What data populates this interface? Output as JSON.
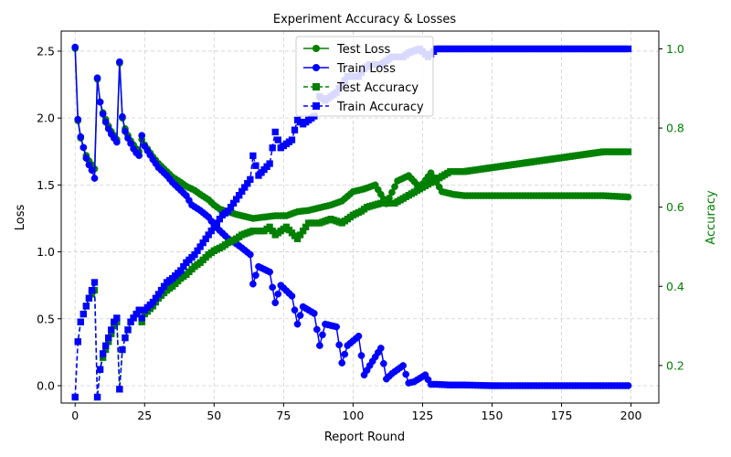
{
  "chart_data": {
    "type": "line",
    "title": "Experiment Accuracy & Losses",
    "xlabel": "Report Round",
    "ylabel": "Loss",
    "y2label": "Accuracy",
    "xlim": [
      -5,
      210
    ],
    "ylim": [
      -0.13,
      2.65
    ],
    "y2lim": [
      0.105,
      1.045
    ],
    "xticks": [
      0,
      25,
      50,
      75,
      100,
      125,
      150,
      175,
      200
    ],
    "yticks": [
      0.0,
      0.5,
      1.0,
      1.5,
      2.0,
      2.5
    ],
    "y2ticks": [
      0.2,
      0.4,
      0.6,
      0.8,
      1.0
    ],
    "grid": true,
    "legend_position": "top-center",
    "colors": {
      "test": "#008000",
      "train": "#0000ff",
      "y2_axis": "#008000"
    },
    "series": [
      {
        "name": "Test Loss",
        "axis": "left",
        "style": "solid",
        "marker": "circle",
        "color": "#008000",
        "keyframes": [
          [
            0,
            2.52
          ],
          [
            1,
            1.98
          ],
          [
            2,
            1.85
          ],
          [
            3,
            1.78
          ],
          [
            4,
            1.72
          ],
          [
            5,
            1.68
          ],
          [
            6,
            1.65
          ],
          [
            7,
            1.62
          ],
          [
            8,
            2.29
          ],
          [
            9,
            2.12
          ],
          [
            10,
            2.04
          ],
          [
            11,
            1.99
          ],
          [
            12,
            1.94
          ],
          [
            13,
            1.9
          ],
          [
            14,
            1.87
          ],
          [
            15,
            1.84
          ],
          [
            16,
            2.41
          ],
          [
            17,
            2.0
          ],
          [
            18,
            1.92
          ],
          [
            19,
            1.87
          ],
          [
            20,
            1.83
          ],
          [
            21,
            1.8
          ],
          [
            22,
            1.77
          ],
          [
            23,
            1.75
          ],
          [
            24,
            1.84
          ],
          [
            25,
            1.8
          ],
          [
            28,
            1.71
          ],
          [
            30,
            1.66
          ],
          [
            33,
            1.6
          ],
          [
            35,
            1.56
          ],
          [
            38,
            1.52
          ],
          [
            40,
            1.49
          ],
          [
            43,
            1.46
          ],
          [
            45,
            1.43
          ],
          [
            48,
            1.39
          ],
          [
            50,
            1.35
          ],
          [
            52,
            1.32
          ],
          [
            55,
            1.3
          ],
          [
            58,
            1.28
          ],
          [
            60,
            1.27
          ],
          [
            64,
            1.25
          ],
          [
            68,
            1.26
          ],
          [
            72,
            1.27
          ],
          [
            76,
            1.27
          ],
          [
            80,
            1.3
          ],
          [
            84,
            1.31
          ],
          [
            88,
            1.33
          ],
          [
            92,
            1.35
          ],
          [
            96,
            1.38
          ],
          [
            100,
            1.45
          ],
          [
            104,
            1.47
          ],
          [
            108,
            1.5
          ],
          [
            112,
            1.36
          ],
          [
            116,
            1.53
          ],
          [
            120,
            1.57
          ],
          [
            124,
            1.48
          ],
          [
            128,
            1.59
          ],
          [
            132,
            1.45
          ],
          [
            136,
            1.43
          ],
          [
            140,
            1.42
          ],
          [
            145,
            1.42
          ],
          [
            150,
            1.42
          ],
          [
            160,
            1.42
          ],
          [
            175,
            1.42
          ],
          [
            190,
            1.42
          ],
          [
            199,
            1.41
          ]
        ]
      },
      {
        "name": "Train Loss",
        "axis": "left",
        "style": "solid",
        "marker": "circle",
        "color": "#0000ff",
        "keyframes": [
          [
            0,
            2.53
          ],
          [
            1,
            1.99
          ],
          [
            2,
            1.86
          ],
          [
            3,
            1.78
          ],
          [
            4,
            1.7
          ],
          [
            5,
            1.65
          ],
          [
            6,
            1.61
          ],
          [
            7,
            1.55
          ],
          [
            8,
            2.3
          ],
          [
            9,
            2.12
          ],
          [
            10,
            2.03
          ],
          [
            11,
            1.97
          ],
          [
            12,
            1.92
          ],
          [
            13,
            1.88
          ],
          [
            14,
            1.85
          ],
          [
            15,
            1.82
          ],
          [
            16,
            2.42
          ],
          [
            17,
            2.01
          ],
          [
            18,
            1.9
          ],
          [
            19,
            1.85
          ],
          [
            20,
            1.81
          ],
          [
            21,
            1.77
          ],
          [
            22,
            1.74
          ],
          [
            23,
            1.72
          ],
          [
            24,
            1.87
          ],
          [
            25,
            1.79
          ],
          [
            28,
            1.69
          ],
          [
            30,
            1.63
          ],
          [
            33,
            1.57
          ],
          [
            35,
            1.52
          ],
          [
            38,
            1.46
          ],
          [
            40,
            1.42
          ],
          [
            42,
            1.35
          ],
          [
            45,
            1.31
          ],
          [
            48,
            1.26
          ],
          [
            50,
            1.2
          ],
          [
            52,
            1.16
          ],
          [
            55,
            1.1
          ],
          [
            58,
            1.06
          ],
          [
            60,
            1.03
          ],
          [
            63,
            0.98
          ],
          [
            64,
            0.76
          ],
          [
            66,
            0.89
          ],
          [
            70,
            0.85
          ],
          [
            72,
            0.62
          ],
          [
            74,
            0.75
          ],
          [
            78,
            0.67
          ],
          [
            80,
            0.46
          ],
          [
            82,
            0.59
          ],
          [
            86,
            0.54
          ],
          [
            88,
            0.3
          ],
          [
            90,
            0.46
          ],
          [
            94,
            0.44
          ],
          [
            96,
            0.17
          ],
          [
            98,
            0.3
          ],
          [
            102,
            0.37
          ],
          [
            104,
            0.08
          ],
          [
            106,
            0.15
          ],
          [
            110,
            0.28
          ],
          [
            112,
            0.05
          ],
          [
            114,
            0.09
          ],
          [
            118,
            0.15
          ],
          [
            120,
            0.02
          ],
          [
            122,
            0.03
          ],
          [
            126,
            0.08
          ],
          [
            128,
            0.01
          ],
          [
            130,
            0.01
          ],
          [
            135,
            0.005
          ],
          [
            140,
            0.005
          ],
          [
            150,
            0.0
          ],
          [
            175,
            0.0
          ],
          [
            199,
            0.0
          ]
        ]
      },
      {
        "name": "Test Accuracy",
        "axis": "right",
        "style": "dashed",
        "marker": "square",
        "color": "#008000",
        "keyframes": [
          [
            0,
            0.12
          ],
          [
            1,
            0.26
          ],
          [
            2,
            0.31
          ],
          [
            3,
            0.33
          ],
          [
            4,
            0.35
          ],
          [
            5,
            0.37
          ],
          [
            6,
            0.38
          ],
          [
            7,
            0.39
          ],
          [
            8,
            0.12
          ],
          [
            9,
            0.19
          ],
          [
            10,
            0.22
          ],
          [
            11,
            0.24
          ],
          [
            12,
            0.26
          ],
          [
            13,
            0.28
          ],
          [
            14,
            0.3
          ],
          [
            15,
            0.31
          ],
          [
            16,
            0.14
          ],
          [
            17,
            0.24
          ],
          [
            18,
            0.27
          ],
          [
            19,
            0.29
          ],
          [
            20,
            0.31
          ],
          [
            21,
            0.32
          ],
          [
            22,
            0.33
          ],
          [
            23,
            0.34
          ],
          [
            24,
            0.31
          ],
          [
            25,
            0.33
          ],
          [
            28,
            0.35
          ],
          [
            30,
            0.37
          ],
          [
            33,
            0.39
          ],
          [
            35,
            0.4
          ],
          [
            38,
            0.42
          ],
          [
            40,
            0.43
          ],
          [
            43,
            0.45
          ],
          [
            45,
            0.46
          ],
          [
            48,
            0.48
          ],
          [
            50,
            0.49
          ],
          [
            53,
            0.5
          ],
          [
            55,
            0.51
          ],
          [
            58,
            0.52
          ],
          [
            60,
            0.53
          ],
          [
            64,
            0.54
          ],
          [
            68,
            0.54
          ],
          [
            70,
            0.55
          ],
          [
            72,
            0.53
          ],
          [
            76,
            0.55
          ],
          [
            80,
            0.52
          ],
          [
            84,
            0.56
          ],
          [
            88,
            0.56
          ],
          [
            92,
            0.57
          ],
          [
            96,
            0.56
          ],
          [
            98,
            0.57
          ],
          [
            100,
            0.58
          ],
          [
            103,
            0.59
          ],
          [
            105,
            0.6
          ],
          [
            110,
            0.61
          ],
          [
            115,
            0.61
          ],
          [
            120,
            0.63
          ],
          [
            125,
            0.65
          ],
          [
            130,
            0.67
          ],
          [
            135,
            0.69
          ],
          [
            140,
            0.69
          ],
          [
            150,
            0.7
          ],
          [
            160,
            0.71
          ],
          [
            170,
            0.72
          ],
          [
            180,
            0.73
          ],
          [
            190,
            0.74
          ],
          [
            199,
            0.74
          ]
        ]
      },
      {
        "name": "Train Accuracy",
        "axis": "right",
        "style": "dashed",
        "marker": "square",
        "color": "#0000ff",
        "keyframes": [
          [
            0,
            0.12
          ],
          [
            1,
            0.26
          ],
          [
            2,
            0.31
          ],
          [
            3,
            0.33
          ],
          [
            4,
            0.35
          ],
          [
            5,
            0.37
          ],
          [
            6,
            0.39
          ],
          [
            7,
            0.41
          ],
          [
            8,
            0.12
          ],
          [
            9,
            0.19
          ],
          [
            10,
            0.23
          ],
          [
            11,
            0.25
          ],
          [
            12,
            0.27
          ],
          [
            13,
            0.29
          ],
          [
            14,
            0.31
          ],
          [
            15,
            0.32
          ],
          [
            16,
            0.14
          ],
          [
            17,
            0.24
          ],
          [
            18,
            0.27
          ],
          [
            19,
            0.29
          ],
          [
            20,
            0.31
          ],
          [
            21,
            0.32
          ],
          [
            22,
            0.33
          ],
          [
            23,
            0.34
          ],
          [
            24,
            0.32
          ],
          [
            25,
            0.34
          ],
          [
            28,
            0.36
          ],
          [
            30,
            0.38
          ],
          [
            33,
            0.41
          ],
          [
            35,
            0.42
          ],
          [
            38,
            0.44
          ],
          [
            40,
            0.46
          ],
          [
            43,
            0.48
          ],
          [
            45,
            0.5
          ],
          [
            48,
            0.53
          ],
          [
            50,
            0.55
          ],
          [
            53,
            0.58
          ],
          [
            55,
            0.59
          ],
          [
            58,
            0.62
          ],
          [
            60,
            0.64
          ],
          [
            63,
            0.67
          ],
          [
            64,
            0.73
          ],
          [
            66,
            0.68
          ],
          [
            70,
            0.71
          ],
          [
            72,
            0.79
          ],
          [
            74,
            0.75
          ],
          [
            78,
            0.77
          ],
          [
            80,
            0.82
          ],
          [
            82,
            0.81
          ],
          [
            86,
            0.83
          ],
          [
            88,
            0.88
          ],
          [
            90,
            0.87
          ],
          [
            94,
            0.89
          ],
          [
            96,
            0.91
          ],
          [
            98,
            0.93
          ],
          [
            102,
            0.93
          ],
          [
            104,
            0.95
          ],
          [
            106,
            0.96
          ],
          [
            110,
            0.96
          ],
          [
            112,
            0.97
          ],
          [
            114,
            0.98
          ],
          [
            118,
            0.98
          ],
          [
            120,
            0.99
          ],
          [
            124,
            1.0
          ],
          [
            127,
            0.98
          ],
          [
            130,
            1.0
          ],
          [
            140,
            1.0
          ],
          [
            150,
            1.0
          ],
          [
            175,
            1.0
          ],
          [
            199,
            1.0
          ]
        ]
      }
    ]
  }
}
